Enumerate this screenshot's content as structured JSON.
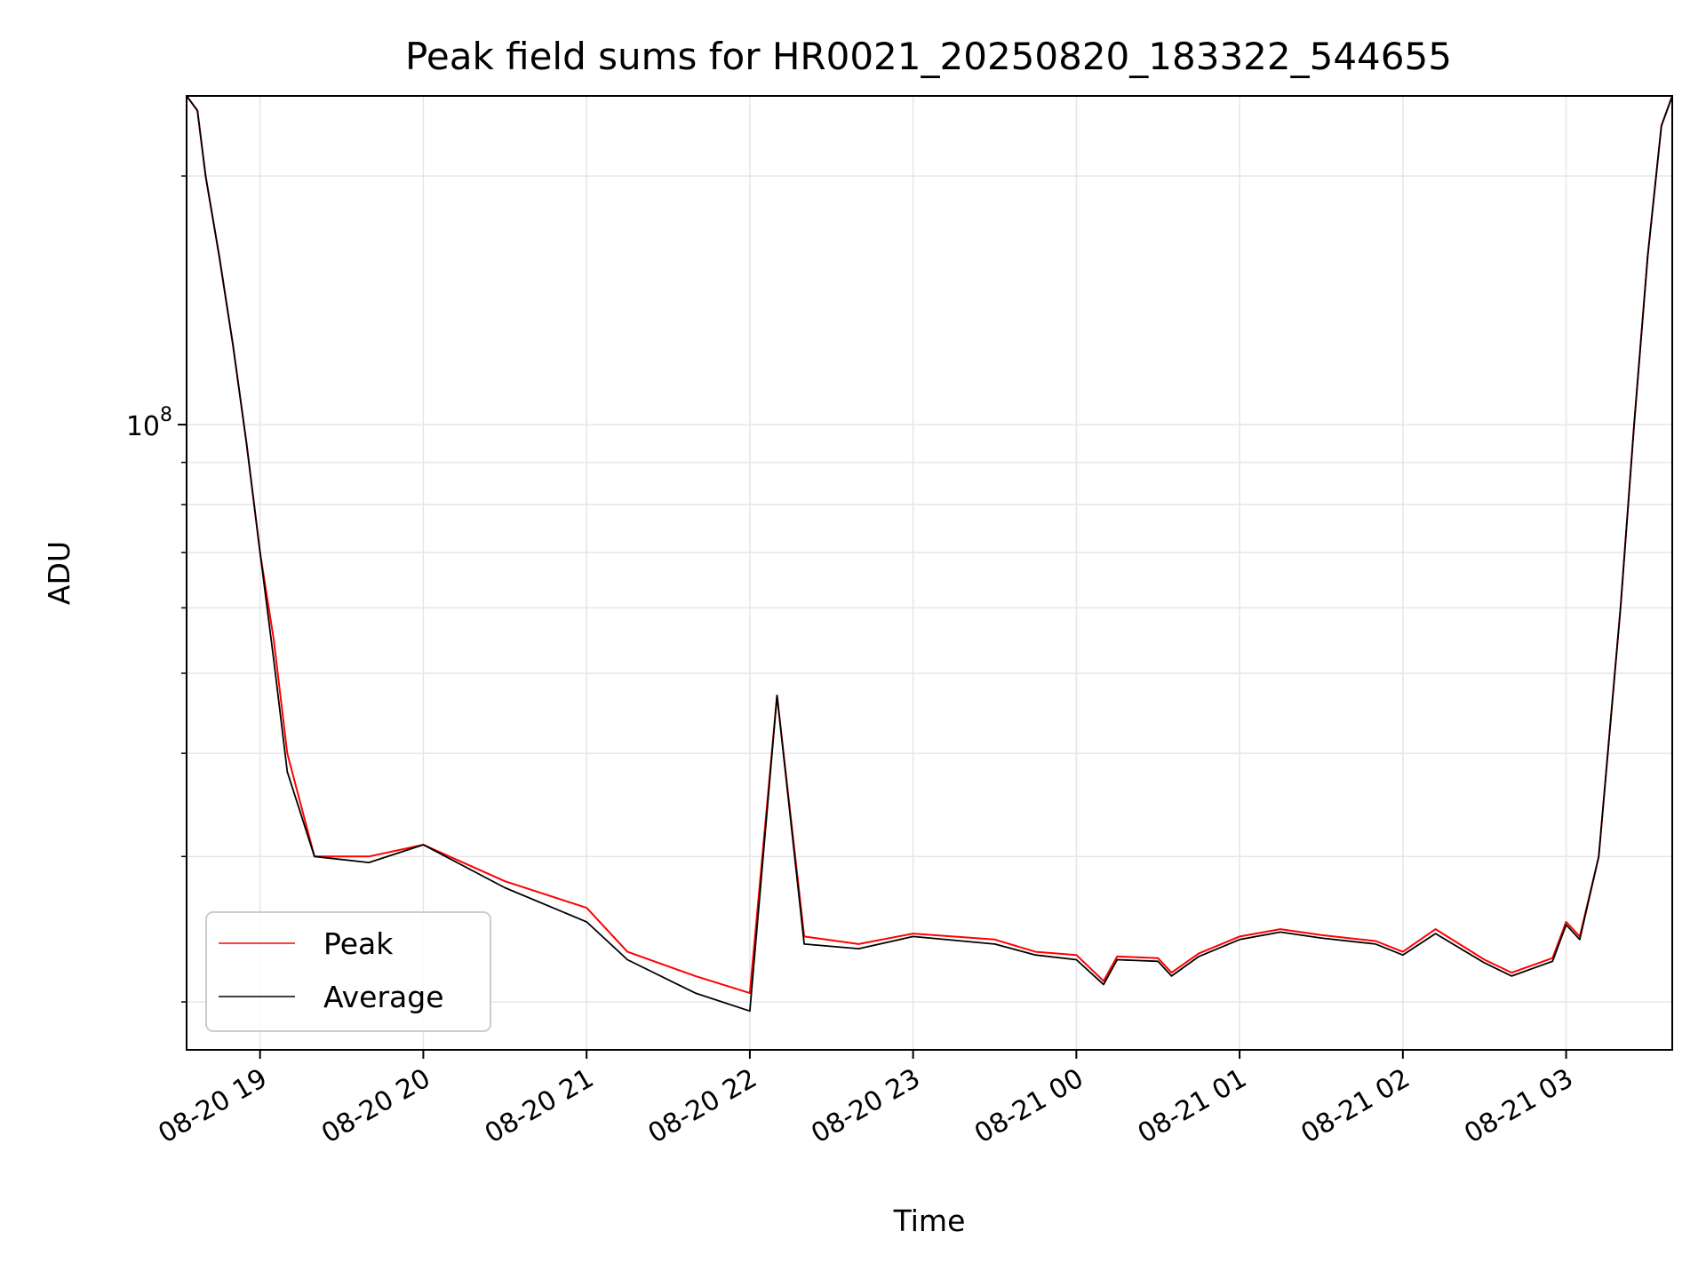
{
  "chart_data": {
    "type": "line",
    "title": "Peak field sums for HR0021_20250820_183322_544655",
    "xlabel": "Time",
    "ylabel": "ADU",
    "y_scale": "log",
    "x_range": [
      "2025-08-20 18:33",
      "2025-08-21 03:39"
    ],
    "ylim": [
      17500000,
      250000000
    ],
    "x_ticks": [
      "08-20 19",
      "08-20 20",
      "08-20 21",
      "08-20 22",
      "08-20 23",
      "08-21 00",
      "08-21 01",
      "08-21 02",
      "08-21 03"
    ],
    "y_ticks": [
      {
        "label": "10",
        "exponent": "8",
        "value": 100000000
      }
    ],
    "grid": true,
    "legend": "lower-left",
    "series": [
      {
        "name": "Peak",
        "color": "#ff0000",
        "points": [
          [
            "2025-08-20 18:33",
            250000000
          ],
          [
            "2025-08-20 18:37",
            240000000
          ],
          [
            "2025-08-20 18:40",
            200000000
          ],
          [
            "2025-08-20 18:45",
            160000000
          ],
          [
            "2025-08-20 18:50",
            125000000
          ],
          [
            "2025-08-20 18:55",
            95000000
          ],
          [
            "2025-08-20 19:00",
            70000000
          ],
          [
            "2025-08-20 19:05",
            55000000
          ],
          [
            "2025-08-20 19:10",
            40000000
          ],
          [
            "2025-08-20 19:20",
            30000000
          ],
          [
            "2025-08-20 19:40",
            30000000
          ],
          [
            "2025-08-20 20:00",
            31000000
          ],
          [
            "2025-08-20 20:30",
            28000000
          ],
          [
            "2025-08-20 21:00",
            26000000
          ],
          [
            "2025-08-20 21:15",
            23000000
          ],
          [
            "2025-08-20 21:40",
            21500000
          ],
          [
            "2025-08-20 22:00",
            20500000
          ],
          [
            "2025-08-20 22:10",
            47000000
          ],
          [
            "2025-08-20 22:20",
            24000000
          ],
          [
            "2025-08-20 22:40",
            23500000
          ],
          [
            "2025-08-20 23:00",
            24200000
          ],
          [
            "2025-08-20 23:30",
            23800000
          ],
          [
            "2025-08-20 23:45",
            23000000
          ],
          [
            "2025-08-21 00:00",
            22800000
          ],
          [
            "2025-08-21 00:10",
            21200000
          ],
          [
            "2025-08-21 00:15",
            22700000
          ],
          [
            "2025-08-21 00:30",
            22600000
          ],
          [
            "2025-08-21 00:35",
            21700000
          ],
          [
            "2025-08-21 00:45",
            22900000
          ],
          [
            "2025-08-21 01:00",
            24000000
          ],
          [
            "2025-08-21 01:15",
            24500000
          ],
          [
            "2025-08-21 01:30",
            24100000
          ],
          [
            "2025-08-21 01:50",
            23700000
          ],
          [
            "2025-08-21 02:00",
            23000000
          ],
          [
            "2025-08-21 02:12",
            24500000
          ],
          [
            "2025-08-21 02:30",
            22500000
          ],
          [
            "2025-08-21 02:40",
            21700000
          ],
          [
            "2025-08-21 02:55",
            22600000
          ],
          [
            "2025-08-21 03:00",
            25000000
          ],
          [
            "2025-08-21 03:05",
            24000000
          ],
          [
            "2025-08-21 03:12",
            30000000
          ],
          [
            "2025-08-21 03:20",
            60000000
          ],
          [
            "2025-08-21 03:25",
            100000000
          ],
          [
            "2025-08-21 03:30",
            160000000
          ],
          [
            "2025-08-21 03:35",
            230000000
          ],
          [
            "2025-08-21 03:39",
            250000000
          ]
        ]
      },
      {
        "name": "Average",
        "color": "#000000",
        "points": [
          [
            "2025-08-20 18:33",
            250000000
          ],
          [
            "2025-08-20 18:37",
            240000000
          ],
          [
            "2025-08-20 18:40",
            200000000
          ],
          [
            "2025-08-20 18:45",
            160000000
          ],
          [
            "2025-08-20 18:50",
            125000000
          ],
          [
            "2025-08-20 18:55",
            95000000
          ],
          [
            "2025-08-20 19:00",
            70000000
          ],
          [
            "2025-08-20 19:05",
            52000000
          ],
          [
            "2025-08-20 19:10",
            38000000
          ],
          [
            "2025-08-20 19:20",
            30000000
          ],
          [
            "2025-08-20 19:40",
            29500000
          ],
          [
            "2025-08-20 20:00",
            31000000
          ],
          [
            "2025-08-20 20:30",
            27500000
          ],
          [
            "2025-08-20 21:00",
            25000000
          ],
          [
            "2025-08-20 21:15",
            22500000
          ],
          [
            "2025-08-20 21:40",
            20500000
          ],
          [
            "2025-08-20 22:00",
            19500000
          ],
          [
            "2025-08-20 22:10",
            47000000
          ],
          [
            "2025-08-20 22:20",
            23500000
          ],
          [
            "2025-08-20 22:40",
            23200000
          ],
          [
            "2025-08-20 23:00",
            24000000
          ],
          [
            "2025-08-20 23:30",
            23500000
          ],
          [
            "2025-08-20 23:45",
            22800000
          ],
          [
            "2025-08-21 00:00",
            22500000
          ],
          [
            "2025-08-21 00:10",
            21000000
          ],
          [
            "2025-08-21 00:15",
            22500000
          ],
          [
            "2025-08-21 00:30",
            22400000
          ],
          [
            "2025-08-21 00:35",
            21500000
          ],
          [
            "2025-08-21 00:45",
            22700000
          ],
          [
            "2025-08-21 01:00",
            23800000
          ],
          [
            "2025-08-21 01:15",
            24300000
          ],
          [
            "2025-08-21 01:30",
            23900000
          ],
          [
            "2025-08-21 01:50",
            23500000
          ],
          [
            "2025-08-21 02:00",
            22800000
          ],
          [
            "2025-08-21 02:12",
            24200000
          ],
          [
            "2025-08-21 02:30",
            22300000
          ],
          [
            "2025-08-21 02:40",
            21500000
          ],
          [
            "2025-08-21 02:55",
            22400000
          ],
          [
            "2025-08-21 03:00",
            24800000
          ],
          [
            "2025-08-21 03:05",
            23800000
          ],
          [
            "2025-08-21 03:12",
            30000000
          ],
          [
            "2025-08-21 03:20",
            60000000
          ],
          [
            "2025-08-21 03:25",
            100000000
          ],
          [
            "2025-08-21 03:30",
            160000000
          ],
          [
            "2025-08-21 03:35",
            230000000
          ],
          [
            "2025-08-21 03:39",
            250000000
          ]
        ]
      }
    ]
  }
}
